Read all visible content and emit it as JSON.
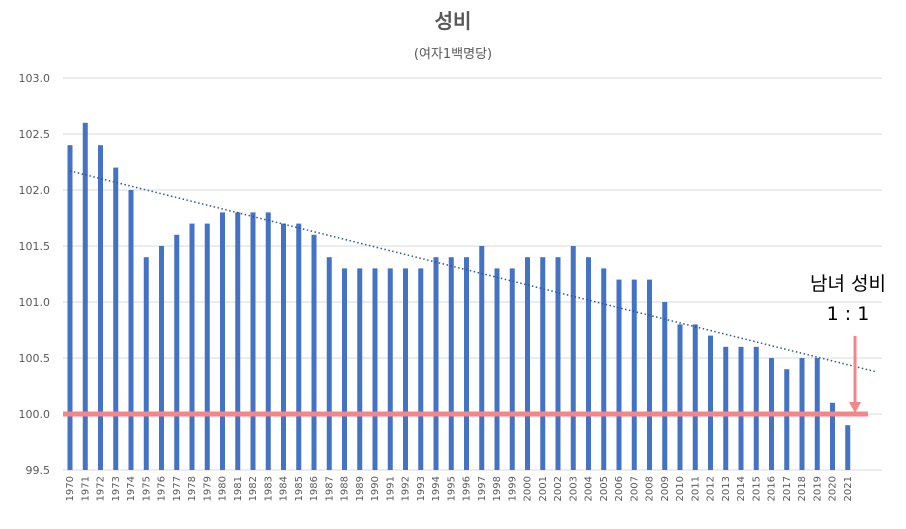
{
  "chart_data": {
    "type": "bar",
    "title": "성비",
    "subtitle": "(여자1백명당)",
    "categories": [
      "1970",
      "1971",
      "1972",
      "1973",
      "1974",
      "1975",
      "1976",
      "1977",
      "1978",
      "1979",
      "1980",
      "1981",
      "1982",
      "1983",
      "1984",
      "1985",
      "1986",
      "1987",
      "1988",
      "1989",
      "1990",
      "1991",
      "1992",
      "1993",
      "1994",
      "1995",
      "1996",
      "1997",
      "1998",
      "1999",
      "2000",
      "2001",
      "2002",
      "2003",
      "2004",
      "2005",
      "2006",
      "2007",
      "2008",
      "2009",
      "2010",
      "2011",
      "2012",
      "2013",
      "2014",
      "2015",
      "2016",
      "2017",
      "2018",
      "2019",
      "2020",
      "2021"
    ],
    "values": [
      102.4,
      102.6,
      102.4,
      102.2,
      102.0,
      101.4,
      101.5,
      101.6,
      101.7,
      101.7,
      101.8,
      101.8,
      101.8,
      101.8,
      101.7,
      101.7,
      101.6,
      101.4,
      101.3,
      101.3,
      101.3,
      101.3,
      101.3,
      101.3,
      101.4,
      101.4,
      101.4,
      101.5,
      101.3,
      101.3,
      101.4,
      101.4,
      101.4,
      101.5,
      101.4,
      101.3,
      101.2,
      101.2,
      101.2,
      101.0,
      100.8,
      100.8,
      100.7,
      100.6,
      100.6,
      100.6,
      100.5,
      100.4,
      100.5,
      100.5,
      100.1,
      99.9
    ],
    "ylim": [
      99.5,
      103.0
    ],
    "yticks": [
      "99.5",
      "100.0",
      "100.5",
      "101.0",
      "101.5",
      "102.0",
      "102.5",
      "103.0"
    ],
    "grid": true,
    "bar_color": "#4472C4",
    "trendline": {
      "style": "dotted",
      "color": "#2F5597",
      "start_value": 102.17,
      "end_value": 100.38
    },
    "reference_line": {
      "value": 100.0,
      "color": "#F4868A"
    },
    "annotation": {
      "line1": "남녀 성비",
      "line2": "1 : 1",
      "arrow_color": "#F4868A"
    }
  }
}
